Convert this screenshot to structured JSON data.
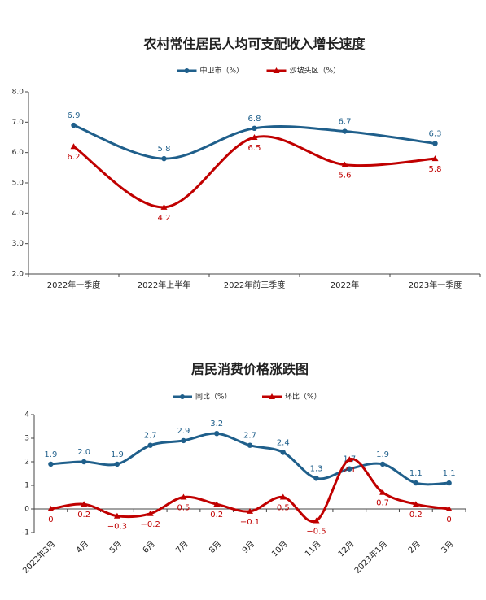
{
  "chart_data": [
    {
      "type": "line",
      "title": "农村常住居民人均可支配收入增长速度",
      "categories": [
        "2022年一季度",
        "2022年上半年",
        "2022年前三季度",
        "2022年",
        "2023年一季度"
      ],
      "series": [
        {
          "name": "中卫市（%）",
          "color": "#1f5f8b",
          "values": [
            6.9,
            5.8,
            6.8,
            6.7,
            6.3
          ]
        },
        {
          "name": "沙坡头区（%）",
          "color": "#c00000",
          "values": [
            6.2,
            4.2,
            6.5,
            5.6,
            5.8
          ]
        }
      ],
      "ylim": [
        2,
        8
      ],
      "yticks": [
        {
          "value": 2,
          "label": "2.0"
        },
        {
          "value": 3,
          "label": "3.0"
        },
        {
          "value": 4,
          "label": "4.0"
        },
        {
          "value": 5,
          "label": "5.0"
        },
        {
          "value": 6,
          "label": "6.0"
        },
        {
          "value": 7,
          "label": "7.0"
        },
        {
          "value": 8,
          "label": "8.0"
        }
      ],
      "smooth": true
    },
    {
      "type": "line",
      "title": "居民消费价格涨跌图",
      "categories": [
        "2022年3月",
        "4月",
        "5月",
        "6月",
        "7月",
        "8月",
        "9月",
        "10月",
        "11月",
        "12月",
        "2023年1月",
        "2月",
        "3月"
      ],
      "series": [
        {
          "name": "同比（%）",
          "color": "#1f5f8b",
          "values": [
            1.9,
            2.0,
            1.9,
            2.7,
            2.9,
            3.2,
            2.7,
            2.4,
            1.3,
            1.7,
            1.9,
            1.1,
            1.1
          ],
          "value_labels": [
            "1.9",
            "2.0",
            "1.9",
            "2.7",
            "2.9",
            "3.2",
            "2.7",
            "2.4",
            "1.3",
            "1.7",
            "1.9",
            "1.1",
            "1.1"
          ]
        },
        {
          "name": "环比（%）",
          "color": "#c00000",
          "values": [
            0,
            0.2,
            -0.3,
            -0.2,
            0.5,
            0.2,
            -0.1,
            0.5,
            -0.5,
            2.1,
            0.7,
            0.2,
            0
          ],
          "value_labels": [
            "0",
            "0.2",
            "−0.3",
            "−0.2",
            "0.5",
            "0.2",
            "−0.1",
            "0.5",
            "−0.5",
            "2.1",
            "0.7",
            "0.2",
            "0"
          ]
        }
      ],
      "ylim": [
        -1,
        4
      ],
      "yticks": [
        -1,
        0,
        1,
        2,
        3,
        4
      ],
      "smooth": true
    }
  ]
}
